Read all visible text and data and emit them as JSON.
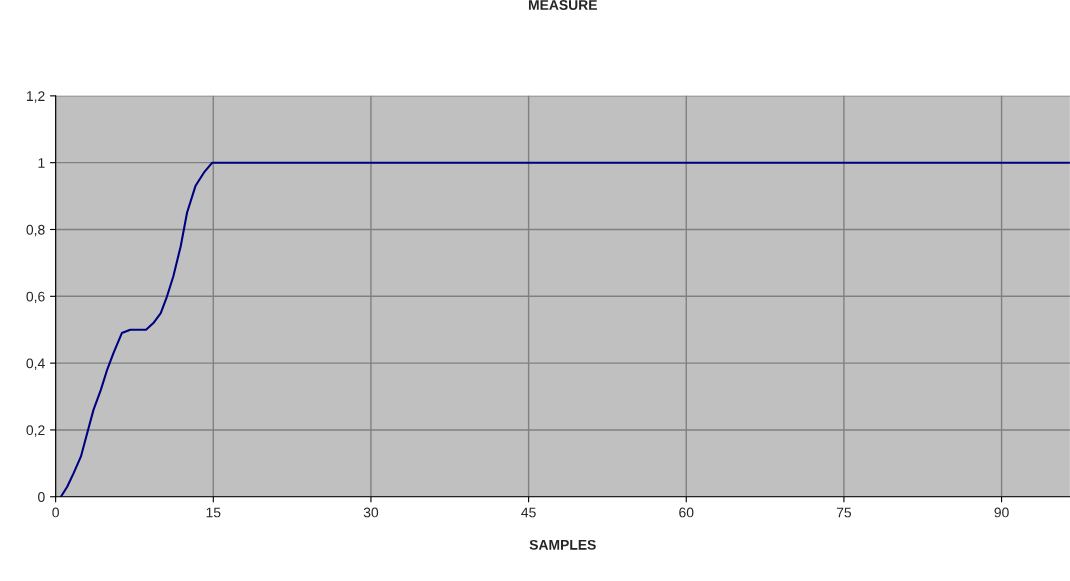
{
  "chart_data": {
    "type": "line",
    "title": "MEASURE",
    "xlabel": "SAMPLES",
    "x": [
      0.5,
      1.1,
      1.7,
      2.4,
      3.0,
      3.6,
      4.3,
      4.9,
      5.5,
      6.3,
      7.1,
      8.6,
      9.3,
      10.0,
      10.6,
      11.2,
      11.9,
      12.5,
      13.3,
      14.1,
      14.9,
      15.5,
      96.5
    ],
    "series": [
      {
        "color": "#000080",
        "values": [
          0,
          0.03,
          0.07,
          0.12,
          0.19,
          0.26,
          0.32,
          0.38,
          0.43,
          0.49,
          0.5,
          0.5,
          0.52,
          0.55,
          0.6,
          0.66,
          0.75,
          0.85,
          0.93,
          0.97,
          1.0,
          1.0,
          1.0
        ]
      }
    ],
    "xlim": [
      0,
      96.5
    ],
    "ylim": [
      0,
      1.2
    ],
    "xticks": [
      0,
      15,
      30,
      45,
      60,
      75,
      90
    ],
    "yticks": [
      0,
      {
        "value": 0.2,
        "label": "0,2"
      },
      {
        "value": 0.4,
        "label": "0,4"
      },
      {
        "value": 0.6,
        "label": "0,6"
      },
      {
        "value": 0.8,
        "label": "0,8"
      },
      1,
      {
        "value": 1.2,
        "label": "1,2"
      }
    ],
    "grid": true,
    "marker": "none",
    "line_style": "solid"
  }
}
